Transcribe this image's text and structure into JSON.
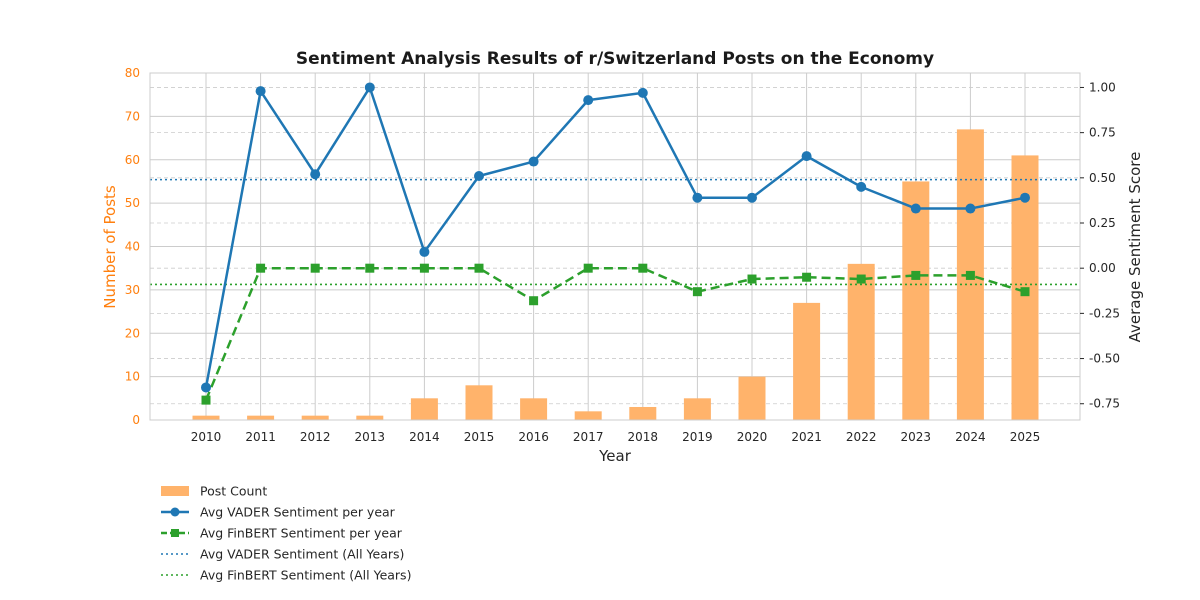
{
  "chart_data": {
    "type": "bar",
    "title": "Sentiment Analysis Results of r/Switzerland Posts on the Economy",
    "xlabel": "Year",
    "ylabel_left": "Number of Posts",
    "ylabel_right": "Average Sentiment Score",
    "categories": [
      "2010",
      "2011",
      "2012",
      "2013",
      "2014",
      "2015",
      "2016",
      "2017",
      "2018",
      "2019",
      "2020",
      "2021",
      "2022",
      "2023",
      "2024",
      "2025"
    ],
    "ylim_left": [
      0,
      80
    ],
    "yticks_left": [
      0,
      10,
      20,
      30,
      40,
      50,
      60,
      70,
      80
    ],
    "ylim_right": [
      -0.84,
      1.08
    ],
    "yticks_right": [
      "-0.75",
      "-0.50",
      "-0.25",
      "0.00",
      "0.25",
      "0.50",
      "0.75",
      "1.00"
    ],
    "grid": true,
    "legend_position": "bottom-left, below the plot",
    "series": [
      {
        "name": "Post Count",
        "type": "bar",
        "axis": "left",
        "color": "#ffb36b",
        "values": [
          1,
          1,
          1,
          1,
          5,
          8,
          5,
          2,
          3,
          5,
          10,
          27,
          36,
          55,
          67,
          61
        ]
      },
      {
        "name": "Avg VADER Sentiment per year",
        "type": "line",
        "axis": "right",
        "color": "#1f77b4",
        "marker": "circle",
        "line_style": "solid",
        "values": [
          -0.66,
          0.98,
          0.52,
          1.0,
          0.09,
          0.51,
          0.59,
          0.93,
          0.97,
          0.39,
          0.39,
          0.62,
          0.45,
          0.33,
          0.33,
          0.39
        ]
      },
      {
        "name": "Avg FinBERT Sentiment per year",
        "type": "line",
        "axis": "right",
        "color": "#2ca02c",
        "marker": "square",
        "line_style": "dashed",
        "values": [
          -0.73,
          0.0,
          0.0,
          0.0,
          0.0,
          0.0,
          -0.18,
          0.0,
          0.0,
          -0.13,
          -0.06,
          -0.05,
          -0.06,
          -0.04,
          -0.04,
          -0.13
        ]
      },
      {
        "name": "Avg VADER Sentiment (All Years)",
        "type": "hline",
        "axis": "right",
        "color": "#1f77b4",
        "line_style": "dotted",
        "value": 0.49
      },
      {
        "name": "Avg FinBERT Sentiment (All Years)",
        "type": "hline",
        "axis": "right",
        "color": "#2ca02c",
        "line_style": "dotted",
        "value": -0.09
      }
    ]
  }
}
